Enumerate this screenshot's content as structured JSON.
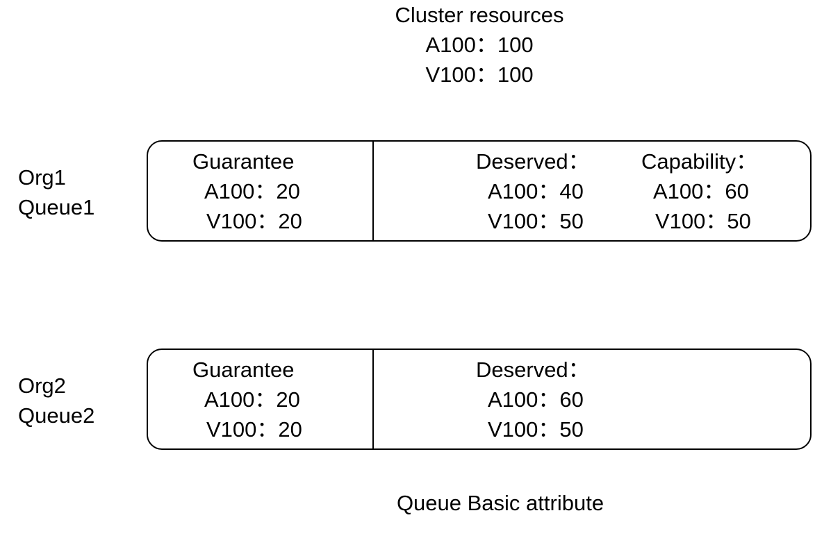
{
  "cluster": {
    "title": "Cluster resources",
    "a100": "A100：100",
    "v100": "V100：100"
  },
  "queues": [
    {
      "org": "Org1",
      "queue": "Queue1",
      "guarantee": {
        "title": "Guarantee",
        "a100": "A100：20",
        "v100": "V100：20"
      },
      "deserved": {
        "title": "Deserved：",
        "a100": "A100：40",
        "v100": "V100：50"
      },
      "capability": {
        "title": "Capability：",
        "a100": "A100：60",
        "v100": "V100：50"
      }
    },
    {
      "org": "Org2",
      "queue": "Queue2",
      "guarantee": {
        "title": "Guarantee",
        "a100": "A100：20",
        "v100": "V100：20"
      },
      "deserved": {
        "title": "Deserved：",
        "a100": "A100：60",
        "v100": "V100：50"
      }
    }
  ],
  "caption": "Queue Basic attribute"
}
